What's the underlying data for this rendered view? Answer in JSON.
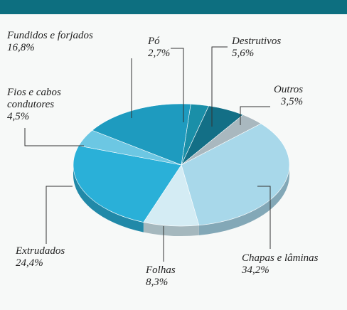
{
  "chart_data": {
    "type": "pie",
    "categories": [
      "Pó",
      "Destrutivos",
      "Outros",
      "Chapas e lâminas",
      "Folhas",
      "Extrudados",
      "Fios e cabos condutores",
      "Fundidos e forjados"
    ],
    "values": [
      2.7,
      5.6,
      3.5,
      34.2,
      8.3,
      24.4,
      4.5,
      16.8
    ],
    "value_labels": [
      "2,7%",
      "5,6%",
      "3,5%",
      "34,2%",
      "8,3%",
      "24,4%",
      "4,5%",
      "16,8%"
    ],
    "colors": [
      "#1a8fa8",
      "#136f86",
      "#a9b8bf",
      "#a8d8ea",
      "#d4ecf4",
      "#2ab0d8",
      "#6cc7e3",
      "#1e9bbf"
    ]
  }
}
